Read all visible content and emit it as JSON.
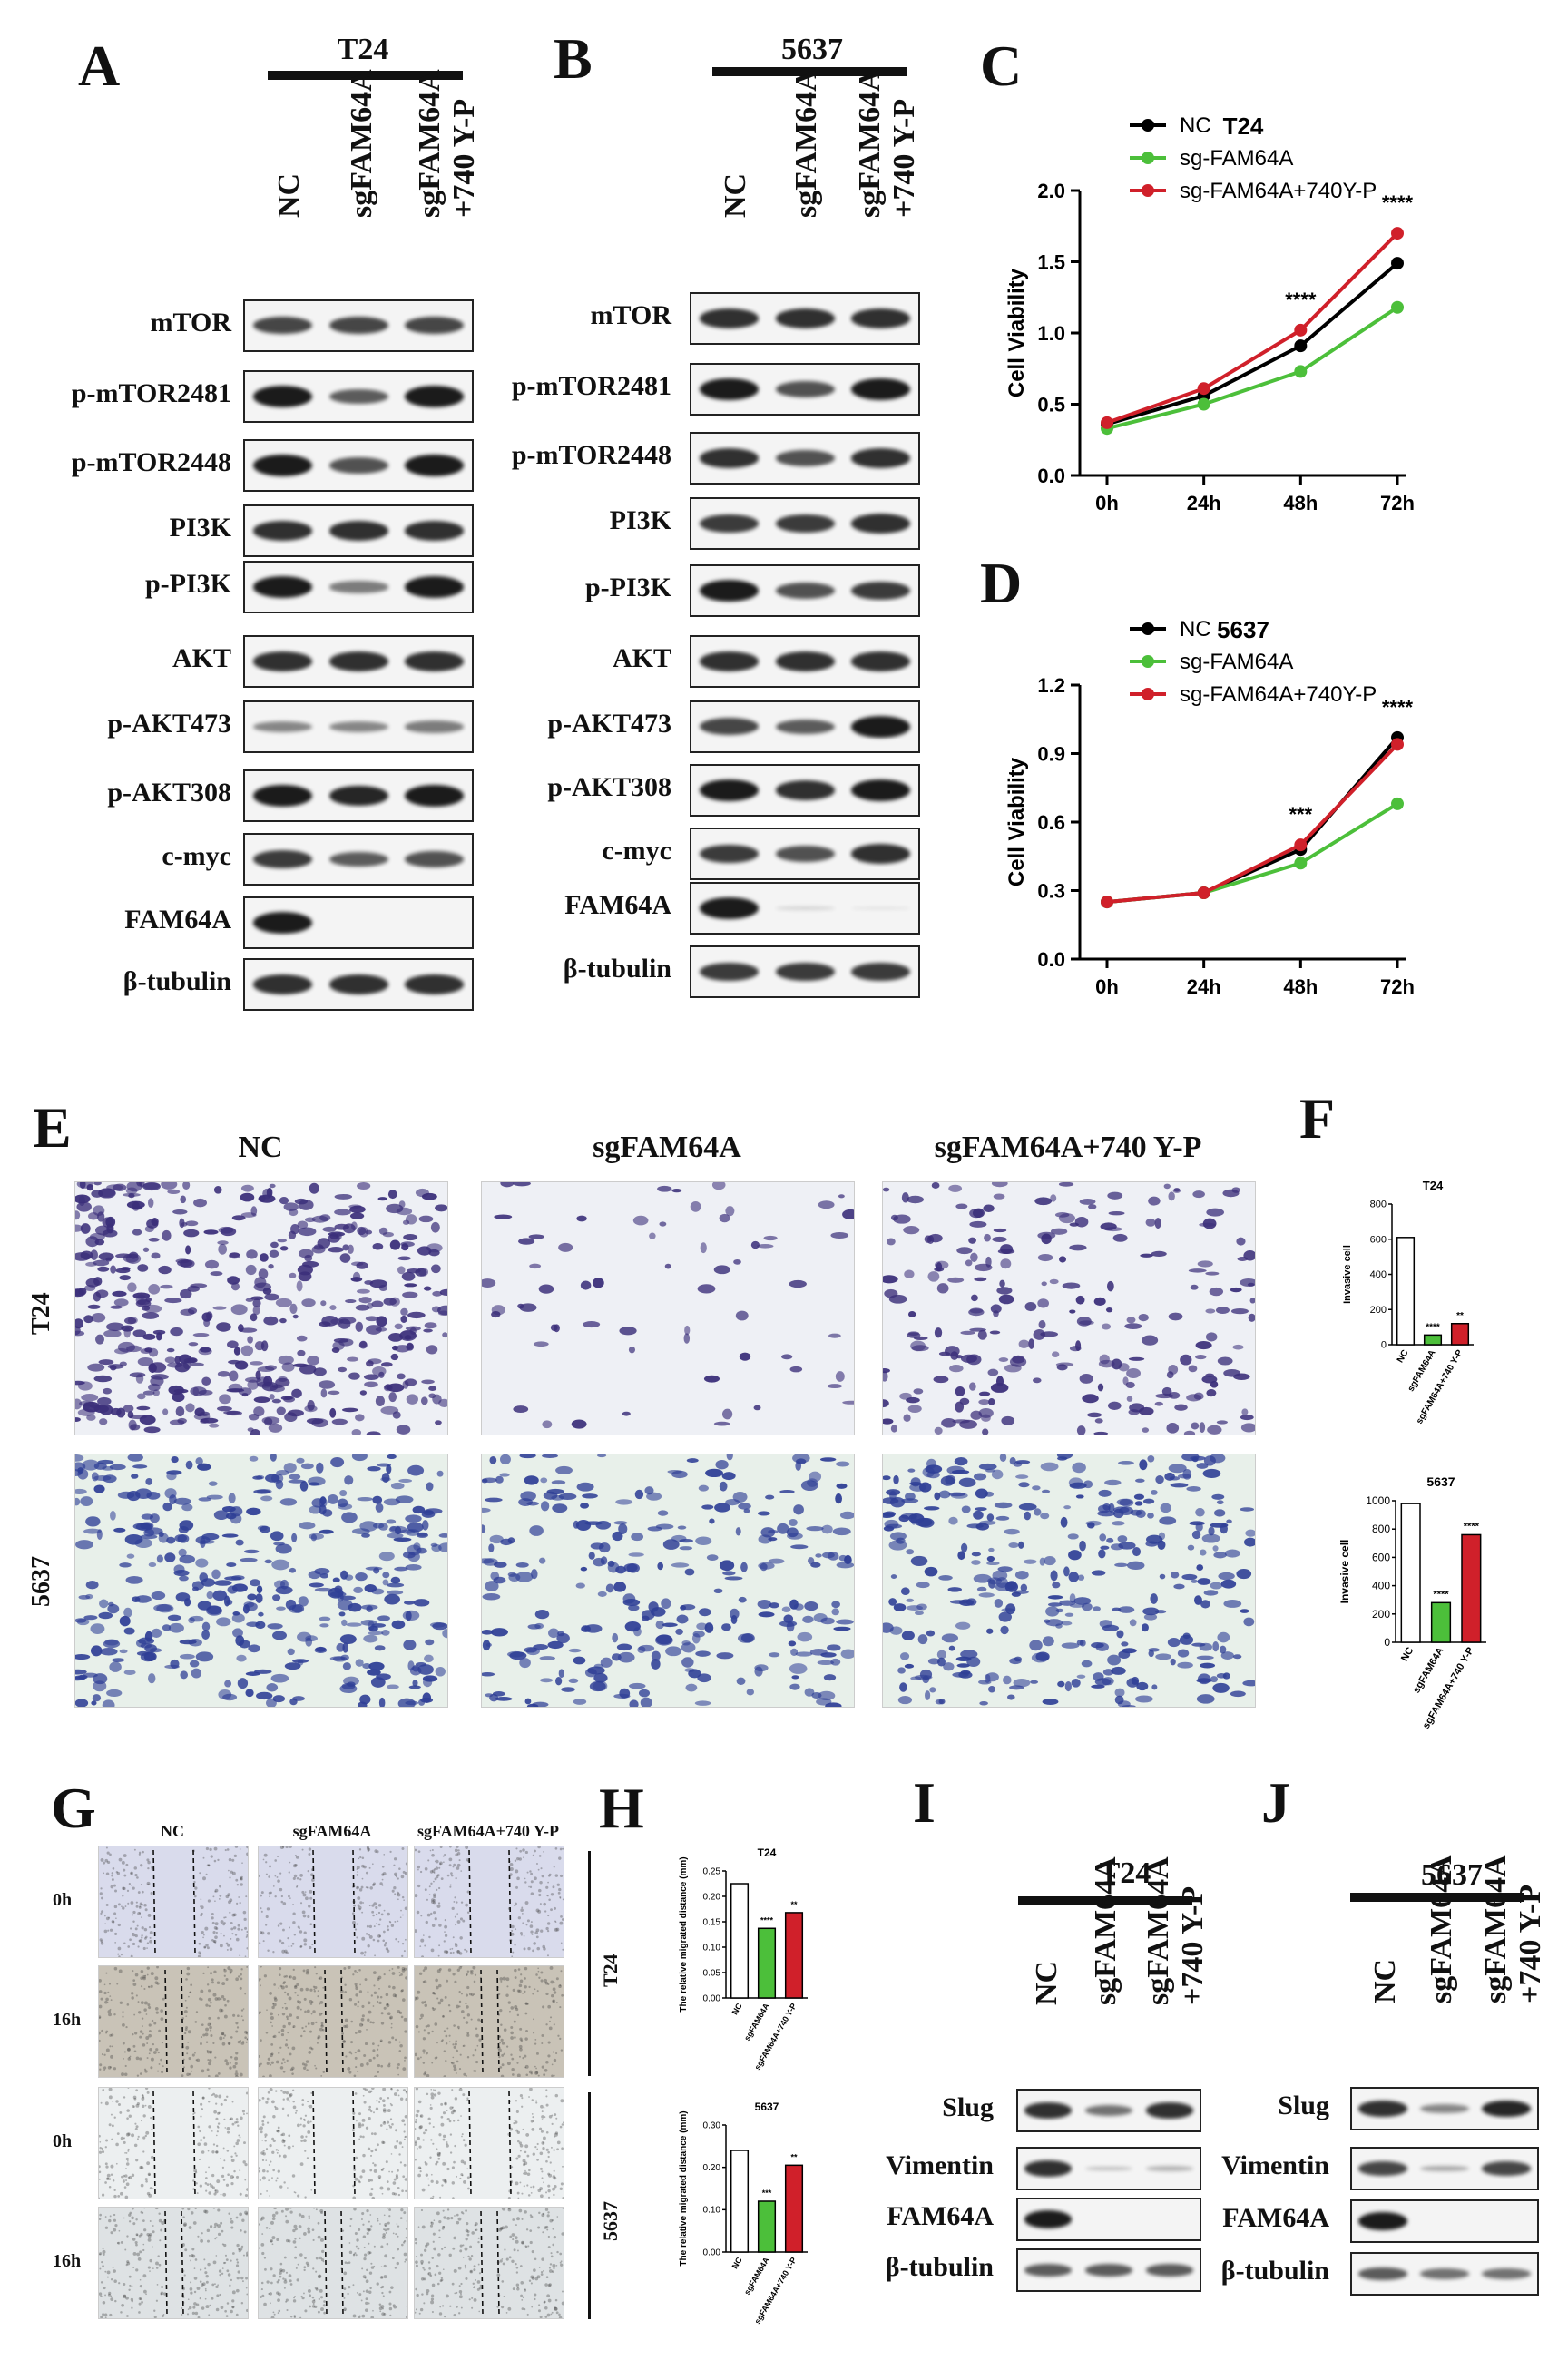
{
  "panels": {
    "A": "A",
    "B": "B",
    "C": "C",
    "D": "D",
    "E": "E",
    "F": "F",
    "G": "G",
    "H": "H",
    "I": "I",
    "J": "J"
  },
  "wb_top": {
    "A": {
      "cell_line": "T24",
      "lanes": [
        "NC",
        "sgFAM64A",
        "sgFAM64A\n+740 Y-P"
      ],
      "rows": [
        "mTOR",
        "p-mTOR2481",
        "p-mTOR2448",
        "PI3K",
        "p-PI3K",
        "AKT",
        "p-AKT473",
        "p-AKT308",
        "c-myc",
        "FAM64A",
        "β-tubulin"
      ]
    },
    "B": {
      "cell_line": "5637",
      "lanes": [
        "NC",
        "sgFAM64A",
        "sgFAM64A\n+740 Y-P"
      ],
      "rows": [
        "mTOR",
        "p-mTOR2481",
        "p-mTOR2448",
        "PI3K",
        "p-PI3K",
        "AKT",
        "p-AKT473",
        "p-AKT308",
        "c-myc",
        "FAM64A",
        "β-tubulin"
      ]
    }
  },
  "wb_bottom": {
    "I": {
      "cell_line": "T24",
      "lanes": [
        "NC",
        "sgFAM64A",
        "sgFAM64A\n+740 Y-P"
      ],
      "rows": [
        "Slug",
        "Vimentin",
        "FAM64A",
        "β-tubulin"
      ]
    },
    "J": {
      "cell_line": "5637",
      "lanes": [
        "NC",
        "sgFAM64A",
        "sgFAM64A\n+740 Y-P"
      ],
      "rows": [
        "Slug",
        "Vimentin",
        "FAM64A",
        "β-tubulin"
      ]
    }
  },
  "transwell": {
    "columns": [
      "NC",
      "sgFAM64A",
      "sgFAM64A+740 Y-P"
    ],
    "rows": [
      "T24",
      "5637"
    ]
  },
  "wound": {
    "columns": [
      "NC",
      "sgFAM64A",
      "sgFAM64A+740 Y-P"
    ],
    "times": [
      "0h",
      "16h",
      "0h",
      "16h"
    ],
    "groups": [
      "T24",
      "5637"
    ]
  },
  "colors": {
    "nc": "#000000",
    "sg": "#4cbf3a",
    "sg740": "#d0202a",
    "stain_t24": "#3b2f7a",
    "stain_5637": "#2f3f96"
  },
  "chart_data": [
    {
      "id": "C",
      "type": "line",
      "title": "T24",
      "ylabel": "Cell Viability",
      "xlabel": "",
      "categories": [
        "0h",
        "24h",
        "48h",
        "72h"
      ],
      "ylim": [
        0,
        2.0
      ],
      "yticks": [
        "0.0",
        "0.5",
        "1.0",
        "1.5",
        "2.0"
      ],
      "series": [
        {
          "name": "NC",
          "values": [
            0.36,
            0.56,
            0.91,
            1.49
          ]
        },
        {
          "name": "sg-FAM64A",
          "values": [
            0.33,
            0.5,
            0.73,
            1.18
          ]
        },
        {
          "name": "sg-FAM64A+740Y-P",
          "values": [
            0.37,
            0.61,
            1.02,
            1.7
          ]
        }
      ],
      "annotations": [
        {
          "x": "48h",
          "text": "****"
        },
        {
          "x": "72h",
          "text": "****"
        }
      ]
    },
    {
      "id": "D",
      "type": "line",
      "title": "5637",
      "ylabel": "Cell Viability",
      "xlabel": "",
      "categories": [
        "0h",
        "24h",
        "48h",
        "72h"
      ],
      "ylim": [
        0,
        1.2
      ],
      "yticks": [
        "0.0",
        "0.3",
        "0.6",
        "0.9",
        "1.2"
      ],
      "series": [
        {
          "name": "NC",
          "values": [
            0.25,
            0.29,
            0.48,
            0.97
          ]
        },
        {
          "name": "sg-FAM64A",
          "values": [
            0.25,
            0.29,
            0.42,
            0.68
          ]
        },
        {
          "name": "sg-FAM64A+740Y-P",
          "values": [
            0.25,
            0.29,
            0.5,
            0.94
          ]
        }
      ],
      "annotations": [
        {
          "x": "48h",
          "text": "***"
        },
        {
          "x": "72h",
          "text": "****"
        }
      ]
    },
    {
      "id": "F-T24",
      "type": "bar",
      "title": "T24",
      "ylabel": "Invasive cell",
      "categories": [
        "NC",
        "sgFAM64A",
        "sgFAM64A+740 Y-P"
      ],
      "values": [
        610,
        55,
        120
      ],
      "ylim": [
        0,
        800
      ],
      "yticks": [
        "0",
        "200",
        "400",
        "600",
        "800"
      ],
      "annotations": [
        "",
        "****",
        "**"
      ]
    },
    {
      "id": "F-5637",
      "type": "bar",
      "title": "5637",
      "ylabel": "Invasive cell",
      "categories": [
        "NC",
        "sgFAM64A",
        "sgFAM64A+740 Y-P"
      ],
      "values": [
        980,
        280,
        760
      ],
      "ylim": [
        0,
        1000
      ],
      "yticks": [
        "0",
        "200",
        "400",
        "600",
        "800",
        "1000"
      ],
      "annotations": [
        "",
        "****",
        "****"
      ]
    },
    {
      "id": "H-T24",
      "type": "bar",
      "title": "T24",
      "ylabel": "The relative migrated distance (mm)",
      "categories": [
        "NC",
        "sgFAM64A",
        "sgFAM64A+740 Y-P"
      ],
      "values": [
        0.225,
        0.137,
        0.168
      ],
      "ylim": [
        0,
        0.25
      ],
      "yticks": [
        "0.00",
        "0.05",
        "0.10",
        "0.15",
        "0.20",
        "0.25"
      ],
      "annotations": [
        "",
        "****",
        "**"
      ]
    },
    {
      "id": "H-5637",
      "type": "bar",
      "title": "5637",
      "ylabel": "The relative migrated distance (mm)",
      "categories": [
        "NC",
        "sgFAM64A",
        "sgFAM64A+740 Y-P"
      ],
      "values": [
        0.24,
        0.12,
        0.205
      ],
      "ylim": [
        0,
        0.3
      ],
      "yticks": [
        "0.00",
        "0.10",
        "0.20",
        "0.30"
      ],
      "annotations": [
        "",
        "***",
        "**"
      ]
    }
  ]
}
